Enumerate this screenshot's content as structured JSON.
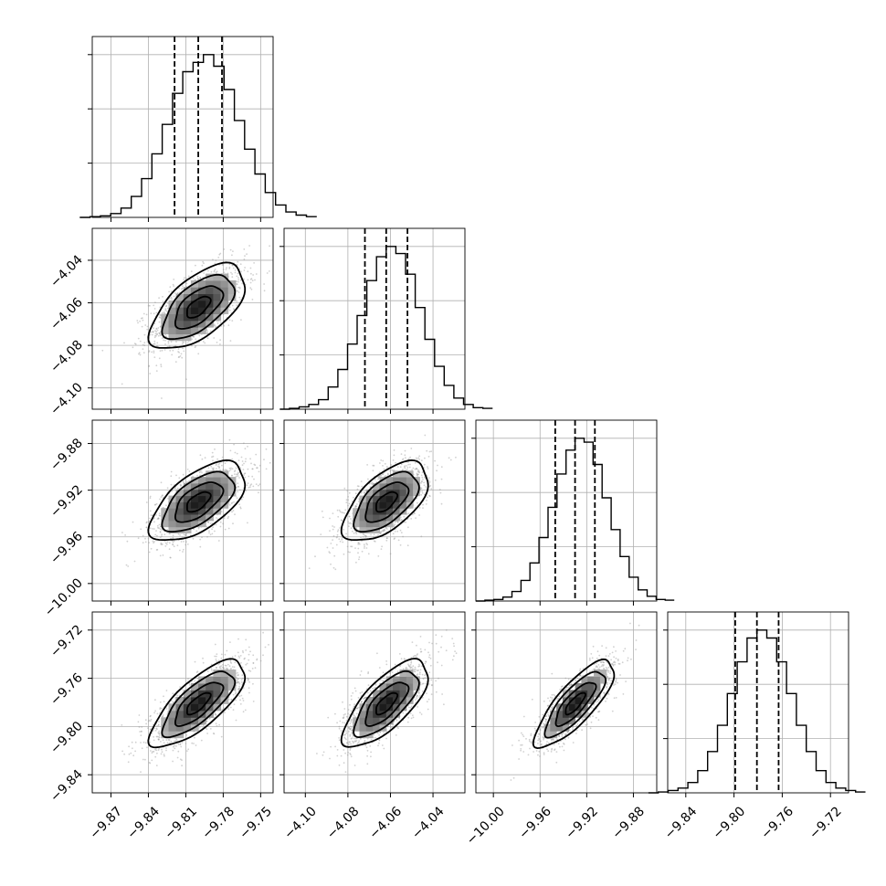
{
  "chart_data": {
    "type": "corner",
    "parameters": [
      {
        "index": 0,
        "range": [
          -9.885,
          -9.74
        ],
        "ticks": [
          -9.87,
          -9.84,
          -9.81,
          -9.78,
          -9.75
        ],
        "tick_labels": [
          "−9.87",
          "−9.84",
          "−9.81",
          "−9.78",
          "−9.75"
        ],
        "median": -9.8,
        "q16": -9.819,
        "q84": -9.781,
        "histogram": [
          0,
          1,
          2,
          5,
          12,
          27,
          50,
          82,
          120,
          160,
          188,
          200,
          210,
          195,
          165,
          125,
          88,
          56,
          32,
          16,
          7,
          3,
          1
        ]
      },
      {
        "index": 1,
        "range": [
          -4.11,
          -4.025
        ],
        "ticks": [
          -4.1,
          -4.08,
          -4.06,
          -4.04
        ],
        "tick_labels": [
          "−4.10",
          "−4.08",
          "−4.06",
          "−4.04"
        ],
        "median": -4.062,
        "q16": -4.072,
        "q84": -4.052,
        "histogram": [
          0,
          1,
          3,
          6,
          12,
          28,
          50,
          82,
          118,
          162,
          192,
          205,
          196,
          170,
          128,
          88,
          54,
          30,
          14,
          6,
          2,
          1
        ]
      },
      {
        "index": 2,
        "range": [
          -10.015,
          -9.86
        ],
        "ticks": [
          -10.0,
          -9.96,
          -9.92,
          -9.88
        ],
        "tick_labels": [
          "−10.00",
          "−9.96",
          "−9.92",
          "−9.88"
        ],
        "median": -9.93,
        "q16": -9.947,
        "q84": -9.913,
        "histogram": [
          0,
          1,
          2,
          5,
          12,
          26,
          48,
          80,
          118,
          160,
          190,
          205,
          200,
          172,
          130,
          90,
          56,
          30,
          14,
          6,
          2,
          1
        ]
      },
      {
        "index": 3,
        "range": [
          -9.855,
          -9.705
        ],
        "ticks": [
          -9.84,
          -9.8,
          -9.76,
          -9.72
        ],
        "tick_labels": [
          "−9.84",
          "−9.80",
          "−9.76",
          "−9.72"
        ],
        "median": -9.781,
        "q16": -9.799,
        "q84": -9.763,
        "histogram": [
          0,
          1,
          3,
          6,
          13,
          28,
          52,
          85,
          125,
          165,
          195,
          205,
          195,
          165,
          125,
          85,
          52,
          28,
          13,
          6,
          3,
          1
        ]
      }
    ],
    "correlations": {
      "1-0": 0.6,
      "2-0": 0.6,
      "2-1": 0.6,
      "3-0": 0.75,
      "3-1": 0.72,
      "3-2": 0.8
    },
    "contour_levels_sigma": [
      0.5,
      1.0,
      1.5,
      2.0
    ],
    "grid": true,
    "colors": {
      "scatter": "#9a9a9a",
      "density": "#000000",
      "line": "#000000"
    }
  }
}
